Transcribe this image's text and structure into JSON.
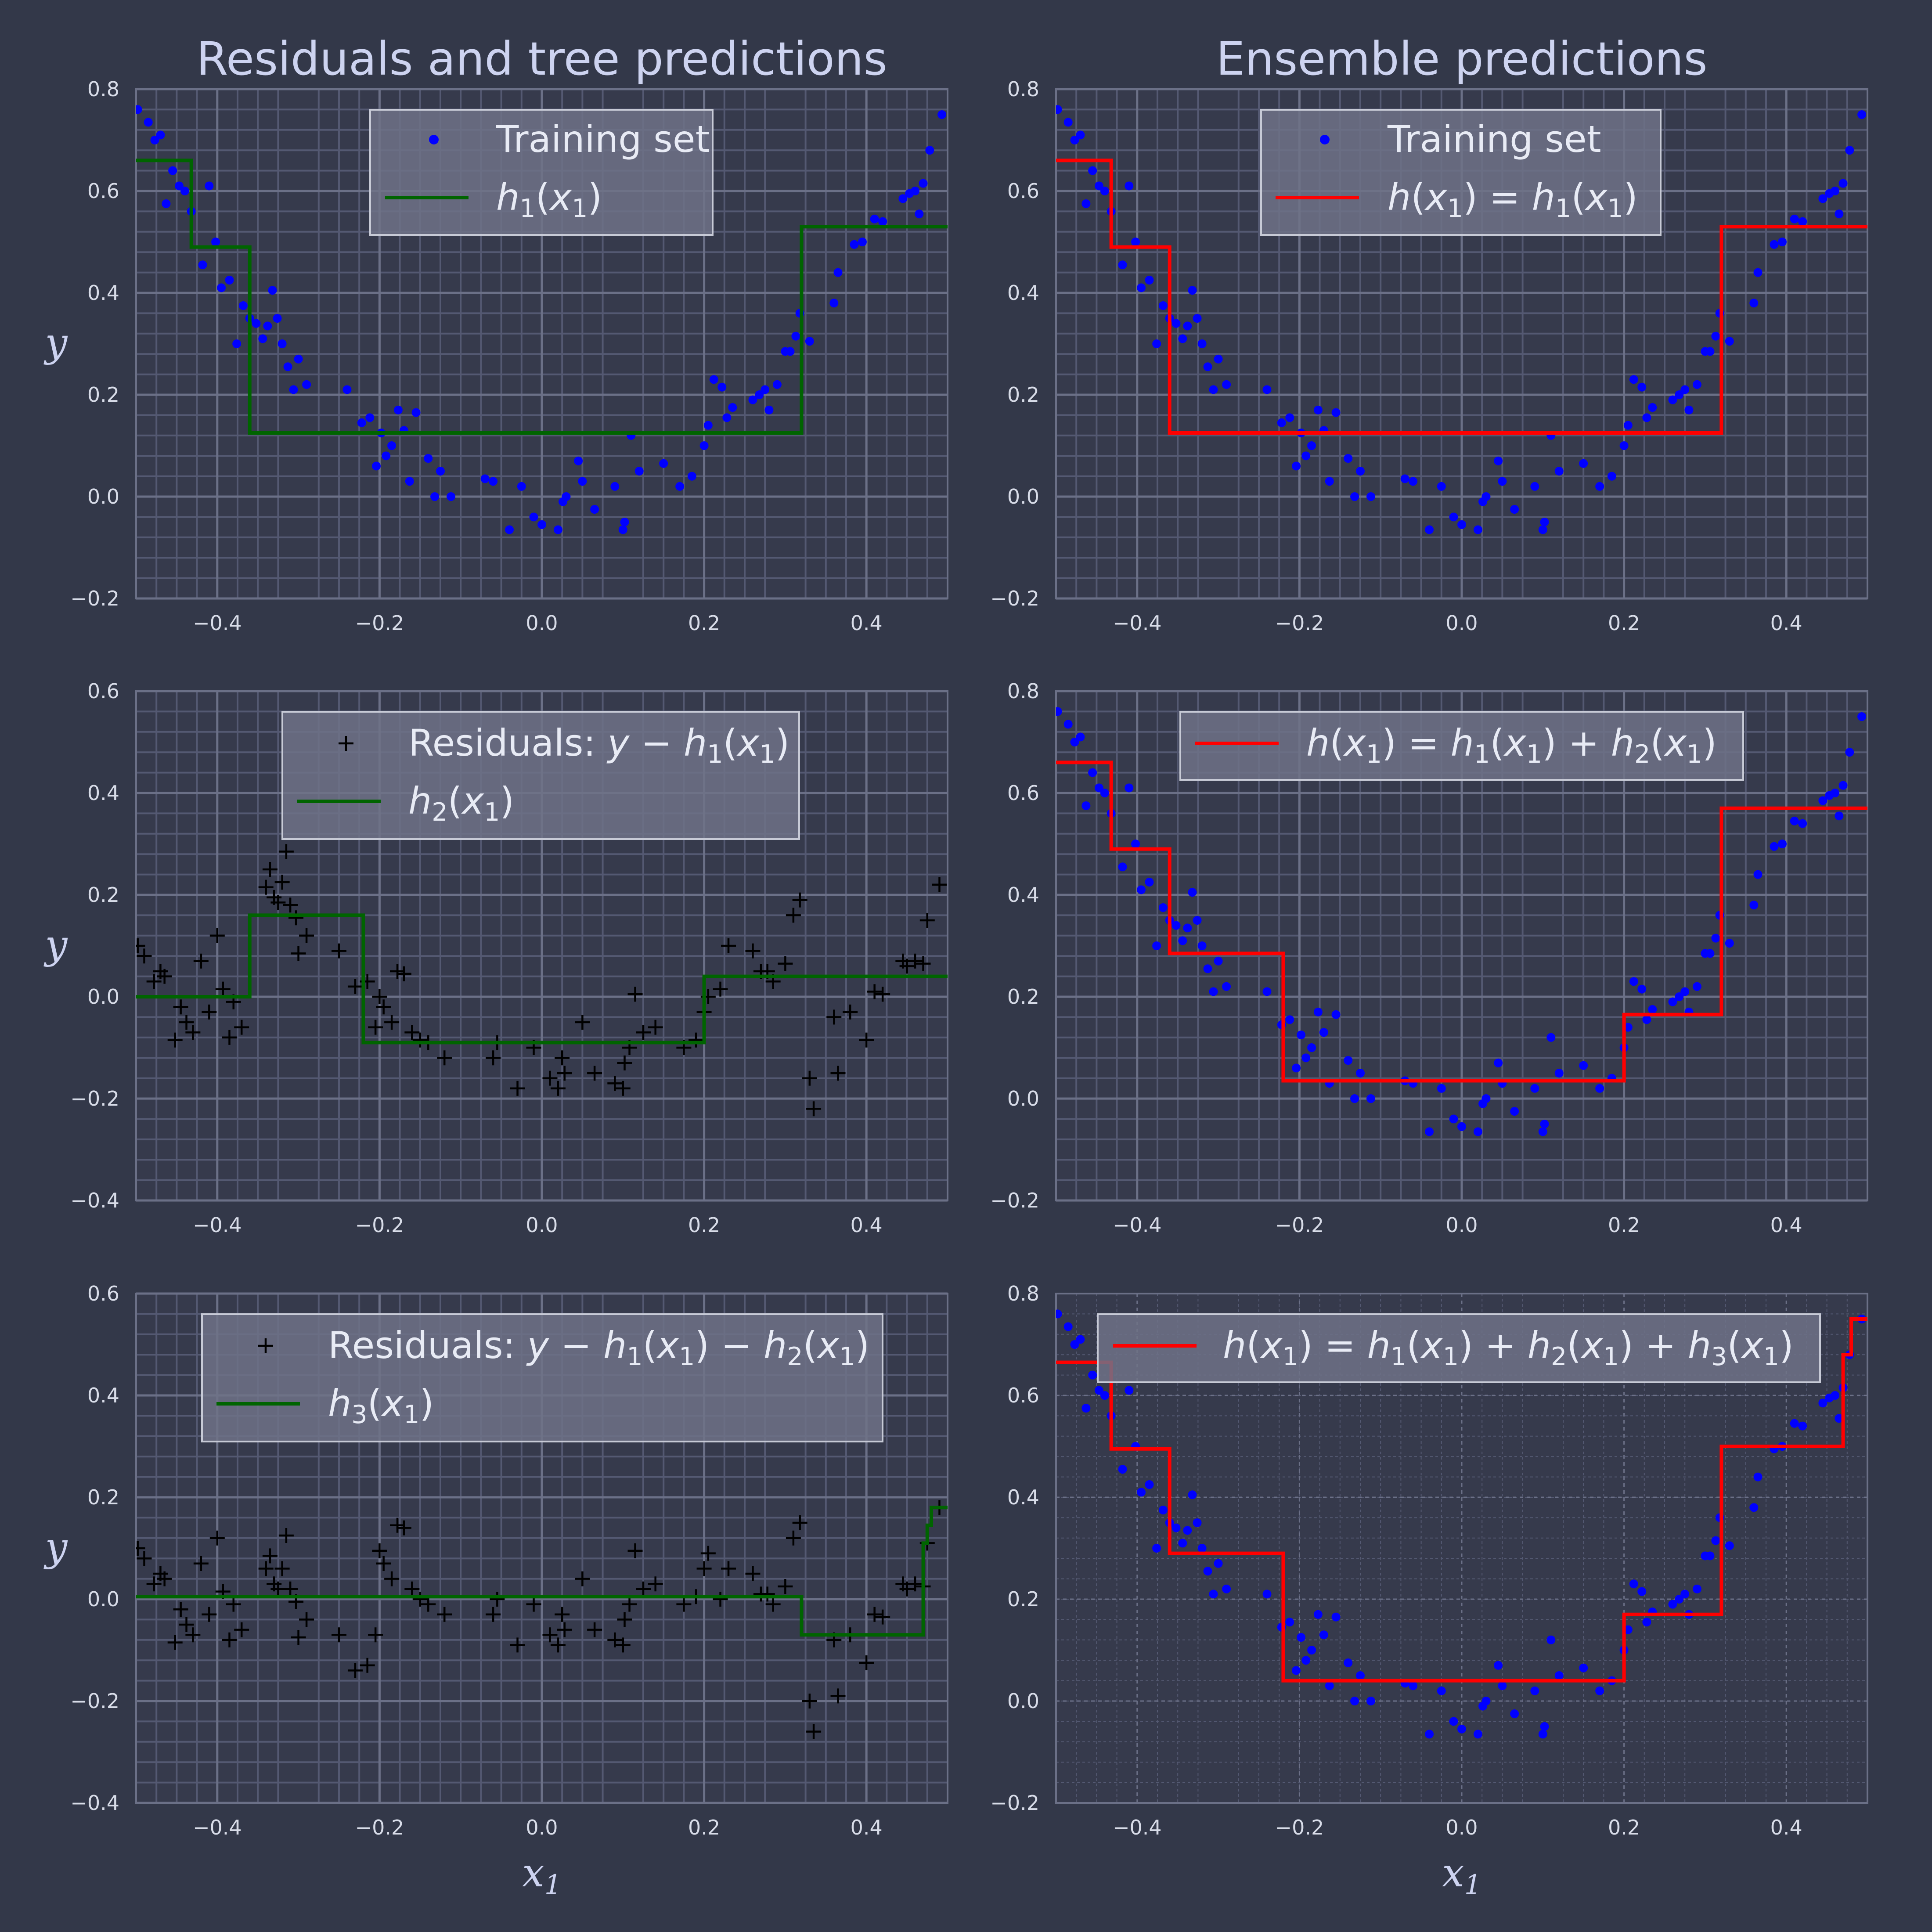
{
  "colors": {
    "background": "#333849",
    "plot_bg": "#363a4c",
    "grid": "#6b7087",
    "minor_grid": "#545972",
    "train_points": "#0000ff",
    "residual_marks": "#000000",
    "tree_line": "#006400",
    "ensemble_line": "#ff0000",
    "legend_bg": "#6e7287",
    "legend_border": "#c7cad6"
  },
  "titles": {
    "left": "Residuals and tree predictions",
    "right": "Ensemble predictions"
  },
  "training": {
    "x": [
      -0.498,
      -0.485,
      -0.477,
      -0.47,
      -0.463,
      -0.455,
      -0.447,
      -0.44,
      -0.432,
      -0.418,
      -0.41,
      -0.402,
      -0.395,
      -0.385,
      -0.376,
      -0.368,
      -0.36,
      -0.352,
      -0.344,
      -0.338,
      -0.332,
      -0.326,
      -0.32,
      -0.313,
      -0.306,
      -0.3,
      -0.29,
      -0.24,
      -0.222,
      -0.212,
      -0.204,
      -0.198,
      -0.192,
      -0.185,
      -0.177,
      -0.17,
      -0.163,
      -0.155,
      -0.14,
      -0.132,
      -0.125,
      -0.112,
      -0.07,
      -0.06,
      -0.04,
      -0.025,
      -0.01,
      0,
      0.02,
      0.026,
      0.03,
      0.045,
      0.05,
      0.065,
      0.09,
      0.1,
      0.102,
      0.11,
      0.12,
      0.15,
      0.17,
      0.185,
      0.2,
      0.205,
      0.212,
      0.222,
      0.228,
      0.235,
      0.26,
      0.268,
      0.275,
      0.28,
      0.29,
      0.3,
      0.306,
      0.313,
      0.318,
      0.33,
      0.36,
      0.365,
      0.385,
      0.395,
      0.41,
      0.42,
      0.445,
      0.453,
      0.46,
      0.465,
      0.47,
      0.478,
      0.493
    ],
    "y": [
      0.76,
      0.735,
      0.7,
      0.71,
      0.575,
      0.64,
      0.61,
      0.6,
      0.56,
      0.455,
      0.61,
      0.5,
      0.41,
      0.425,
      0.3,
      0.375,
      0.35,
      0.34,
      0.31,
      0.335,
      0.405,
      0.35,
      0.3,
      0.255,
      0.21,
      0.27,
      0.22,
      0.21,
      0.145,
      0.155,
      0.06,
      0.125,
      0.08,
      0.1,
      0.17,
      0.13,
      0.03,
      0.165,
      0.075,
      0.0,
      0.05,
      0.0,
      0.035,
      0.03,
      -0.065,
      0.02,
      -0.04,
      -0.055,
      -0.065,
      -0.01,
      0.0,
      0.07,
      0.03,
      -0.025,
      0.02,
      -0.065,
      -0.05,
      0.12,
      0.05,
      0.065,
      0.02,
      0.04,
      0.1,
      0.14,
      0.23,
      0.215,
      0.155,
      0.175,
      0.19,
      0.2,
      0.21,
      0.17,
      0.22,
      0.285,
      0.285,
      0.315,
      0.36,
      0.305,
      0.38,
      0.44,
      0.495,
      0.5,
      0.545,
      0.54,
      0.585,
      0.595,
      0.6,
      0.555,
      0.615,
      0.68,
      0.75
    ]
  },
  "residuals1": {
    "x": [
      -0.498,
      -0.49,
      -0.478,
      -0.47,
      -0.465,
      -0.452,
      -0.445,
      -0.438,
      -0.43,
      -0.42,
      -0.41,
      -0.4,
      -0.393,
      -0.385,
      -0.38,
      -0.37,
      -0.34,
      -0.335,
      -0.33,
      -0.325,
      -0.32,
      -0.315,
      -0.31,
      -0.303,
      -0.3,
      -0.29,
      -0.25,
      -0.23,
      -0.215,
      -0.205,
      -0.2,
      -0.195,
      -0.185,
      -0.178,
      -0.17,
      -0.16,
      -0.15,
      -0.14,
      -0.12,
      -0.06,
      -0.055,
      -0.03,
      -0.01,
      0.01,
      0.02,
      0.025,
      0.028,
      0.05,
      0.065,
      0.09,
      0.1,
      0.102,
      0.108,
      0.115,
      0.125,
      0.14,
      0.175,
      0.19,
      0.2,
      0.205,
      0.22,
      0.23,
      0.26,
      0.27,
      0.278,
      0.285,
      0.3,
      0.31,
      0.318,
      0.33,
      0.335,
      0.36,
      0.365,
      0.38,
      0.4,
      0.41,
      0.42,
      0.445,
      0.45,
      0.46,
      0.47,
      0.475,
      0.49
    ],
    "y": [
      0.1,
      0.08,
      0.03,
      0.05,
      0.04,
      -0.085,
      -0.02,
      -0.05,
      -0.07,
      0.07,
      -0.03,
      0.12,
      0.015,
      -0.08,
      -0.01,
      -0.06,
      0.215,
      0.25,
      0.195,
      0.185,
      0.225,
      0.285,
      0.18,
      0.155,
      0.085,
      0.12,
      0.09,
      0.02,
      0.03,
      -0.06,
      0.0,
      -0.02,
      -0.05,
      0.05,
      0.045,
      -0.07,
      -0.085,
      -0.09,
      -0.12,
      -0.12,
      -0.09,
      -0.18,
      -0.1,
      -0.16,
      -0.18,
      -0.12,
      -0.15,
      -0.05,
      -0.15,
      -0.17,
      -0.18,
      -0.13,
      -0.1,
      0.005,
      -0.07,
      -0.06,
      -0.1,
      -0.085,
      -0.03,
      0.0,
      0.015,
      0.1,
      0.09,
      0.05,
      0.05,
      0.03,
      0.065,
      0.16,
      0.19,
      -0.16,
      -0.22,
      -0.04,
      -0.15,
      -0.03,
      -0.085,
      0.01,
      0.005,
      0.07,
      0.06,
      0.07,
      0.065,
      0.15,
      0.22
    ]
  },
  "residuals2": {
    "x": [
      -0.498,
      -0.49,
      -0.478,
      -0.47,
      -0.465,
      -0.452,
      -0.445,
      -0.438,
      -0.43,
      -0.42,
      -0.41,
      -0.4,
      -0.393,
      -0.385,
      -0.38,
      -0.37,
      -0.34,
      -0.335,
      -0.33,
      -0.325,
      -0.32,
      -0.315,
      -0.31,
      -0.303,
      -0.3,
      -0.29,
      -0.25,
      -0.23,
      -0.215,
      -0.205,
      -0.2,
      -0.195,
      -0.185,
      -0.178,
      -0.17,
      -0.16,
      -0.15,
      -0.14,
      -0.12,
      -0.06,
      -0.055,
      -0.03,
      -0.01,
      0.01,
      0.02,
      0.025,
      0.028,
      0.05,
      0.065,
      0.09,
      0.1,
      0.102,
      0.108,
      0.115,
      0.125,
      0.14,
      0.175,
      0.19,
      0.2,
      0.205,
      0.22,
      0.23,
      0.26,
      0.27,
      0.278,
      0.285,
      0.3,
      0.31,
      0.318,
      0.33,
      0.335,
      0.36,
      0.365,
      0.38,
      0.4,
      0.41,
      0.42,
      0.445,
      0.45,
      0.46,
      0.47,
      0.475,
      0.49
    ],
    "y": [
      0.1,
      0.08,
      0.03,
      0.05,
      0.04,
      -0.085,
      -0.02,
      -0.05,
      -0.07,
      0.07,
      -0.03,
      0.12,
      0.015,
      -0.08,
      -0.01,
      -0.06,
      0.06,
      0.085,
      0.03,
      0.02,
      0.06,
      0.125,
      0.02,
      -0.005,
      -0.075,
      -0.04,
      -0.07,
      -0.14,
      -0.13,
      -0.07,
      0.095,
      0.07,
      0.04,
      0.145,
      0.14,
      0.02,
      0.0,
      -0.01,
      -0.03,
      -0.03,
      0.0,
      -0.09,
      -0.01,
      -0.07,
      -0.09,
      -0.03,
      -0.06,
      0.04,
      -0.06,
      -0.08,
      -0.09,
      -0.04,
      -0.01,
      0.095,
      0.02,
      0.03,
      -0.01,
      0.005,
      0.06,
      0.09,
      0.0,
      0.06,
      0.05,
      0.01,
      0.01,
      -0.01,
      0.025,
      0.12,
      0.15,
      -0.2,
      -0.26,
      -0.08,
      -0.19,
      -0.07,
      -0.125,
      -0.03,
      -0.035,
      0.03,
      0.02,
      0.03,
      0.025,
      0.11,
      0.18
    ]
  },
  "h1": {
    "breaks": [
      -0.5,
      -0.432,
      -0.36,
      0.32,
      0.5
    ],
    "values": [
      0.66,
      0.49,
      0.125,
      0.53
    ]
  },
  "h2": {
    "breaks": [
      -0.5,
      -0.36,
      -0.22,
      0.2,
      0.5
    ],
    "values": [
      0.0,
      0.16,
      -0.09,
      0.04
    ]
  },
  "h3": {
    "breaks": [
      -0.5,
      0.32,
      0.47,
      0.475,
      0.48,
      0.5
    ],
    "values": [
      0.005,
      -0.07,
      0.11,
      0.145,
      0.18
    ]
  },
  "ens2": {
    "breaks": [
      -0.5,
      -0.432,
      -0.36,
      -0.22,
      0.2,
      0.32,
      0.5
    ],
    "values": [
      0.66,
      0.49,
      0.285,
      0.035,
      0.165,
      0.57
    ]
  },
  "ens3": {
    "breaks": [
      -0.5,
      -0.432,
      -0.36,
      -0.22,
      0.2,
      0.32,
      0.47,
      0.48,
      0.5
    ],
    "values": [
      0.665,
      0.495,
      0.29,
      0.04,
      0.17,
      0.5,
      0.68,
      0.75
    ]
  },
  "chart_data": [
    {
      "type": "scatter",
      "title": "Residuals and tree predictions",
      "ylabel": "y",
      "xlim": [
        -0.5,
        0.5
      ],
      "ylim": [
        -0.2,
        0.8
      ],
      "xticks": [
        "−0.4",
        "−0.2",
        "0.0",
        "0.2",
        "0.4"
      ],
      "yticks": [
        "−0.2",
        "0.0",
        "0.2",
        "0.4",
        "0.6",
        "0.8"
      ],
      "legend": {
        "placement": "upper-center",
        "entries": [
          "Training set",
          "h1(x1)"
        ]
      },
      "series": [
        {
          "name": "Training set",
          "data": "training"
        },
        {
          "name": "h1(x1)",
          "data": "h1"
        }
      ]
    },
    {
      "type": "scatter",
      "title": "Ensemble predictions",
      "xlim": [
        -0.5,
        0.5
      ],
      "ylim": [
        -0.2,
        0.8
      ],
      "xticks": [
        "−0.4",
        "−0.2",
        "0.0",
        "0.2",
        "0.4"
      ],
      "yticks": [
        "−0.2",
        "0.0",
        "0.2",
        "0.4",
        "0.6",
        "0.8"
      ],
      "legend": {
        "placement": "upper-center",
        "entries": [
          "Training set",
          "h(x1) = h1(x1)"
        ]
      },
      "series": [
        {
          "name": "Training set",
          "data": "training"
        },
        {
          "name": "h(x1) = h1(x1)",
          "data": "h1"
        }
      ]
    },
    {
      "type": "scatter",
      "ylabel": "y",
      "xlim": [
        -0.5,
        0.5
      ],
      "ylim": [
        -0.4,
        0.6
      ],
      "xticks": [
        "−0.4",
        "−0.2",
        "0.0",
        "0.2",
        "0.4"
      ],
      "yticks": [
        "−0.4",
        "−0.2",
        "0.0",
        "0.2",
        "0.4",
        "0.6"
      ],
      "legend": {
        "placement": "upper-center",
        "entries": [
          "Residuals: y − h1(x1)",
          "h2(x1)"
        ]
      },
      "series": [
        {
          "name": "Residuals: y − h1(x1)",
          "data": "residuals1"
        },
        {
          "name": "h2(x1)",
          "data": "h2"
        }
      ]
    },
    {
      "type": "scatter",
      "xlim": [
        -0.5,
        0.5
      ],
      "ylim": [
        -0.2,
        0.8
      ],
      "xticks": [
        "−0.4",
        "−0.2",
        "0.0",
        "0.2",
        "0.4"
      ],
      "yticks": [
        "−0.2",
        "0.0",
        "0.2",
        "0.4",
        "0.6",
        "0.8"
      ],
      "legend": {
        "placement": "upper-center",
        "entries": [
          "h(x1) = h1(x1) + h2(x1)"
        ]
      },
      "series": [
        {
          "name": "Training set",
          "data": "training"
        },
        {
          "name": "h(x1) = h1(x1) + h2(x1)",
          "data": "ens2"
        }
      ]
    },
    {
      "type": "scatter",
      "ylabel": "y",
      "xlabel": "x1",
      "xlim": [
        -0.5,
        0.5
      ],
      "ylim": [
        -0.4,
        0.6
      ],
      "xticks": [
        "−0.4",
        "−0.2",
        "0.0",
        "0.2",
        "0.4"
      ],
      "yticks": [
        "−0.4",
        "−0.2",
        "0.0",
        "0.2",
        "0.4",
        "0.6"
      ],
      "legend": {
        "placement": "upper-center",
        "entries": [
          "Residuals: y − h1(x1) − h2(x1)",
          "h3(x1)"
        ]
      },
      "series": [
        {
          "name": "Residuals: y − h1(x1) − h2(x1)",
          "data": "residuals2"
        },
        {
          "name": "h3(x1)",
          "data": "h3"
        }
      ]
    },
    {
      "type": "scatter",
      "xlabel": "x1",
      "xlim": [
        -0.5,
        0.5
      ],
      "ylim": [
        -0.2,
        0.8
      ],
      "xticks": [
        "−0.4",
        "−0.2",
        "0.0",
        "0.2",
        "0.4"
      ],
      "yticks": [
        "−0.2",
        "0.0",
        "0.2",
        "0.4",
        "0.6",
        "0.8"
      ],
      "legend": {
        "placement": "upper-center",
        "entries": [
          "h(x1) = h1(x1) + h2(x1) + h3(x1)"
        ]
      },
      "series": [
        {
          "name": "Training set",
          "data": "training"
        },
        {
          "name": "h(x1) = h1(x1) + h2(x1) + h3(x1)",
          "data": "ens3"
        }
      ]
    }
  ]
}
